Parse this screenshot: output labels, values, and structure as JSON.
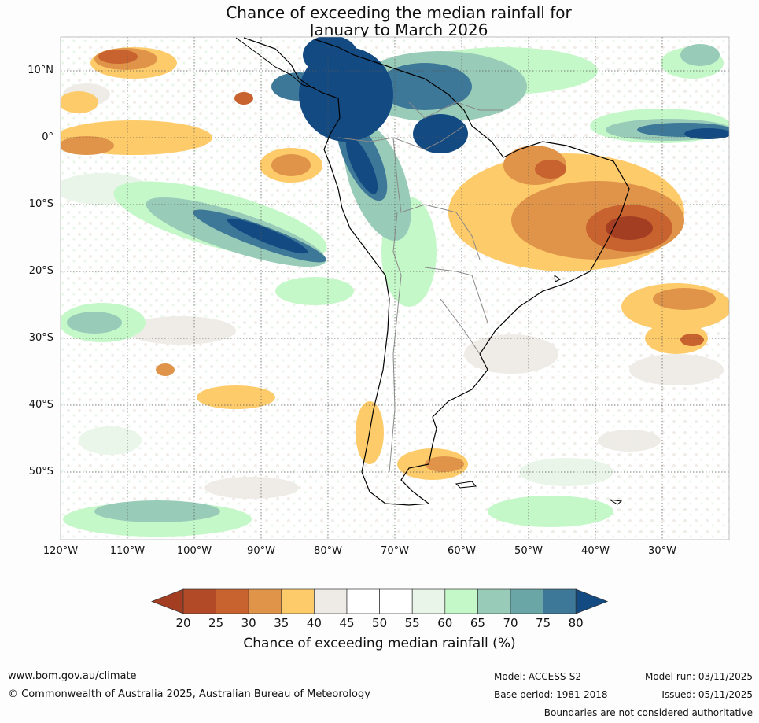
{
  "title": {
    "line1": "Chance of exceeding the median rainfall for",
    "line2": "January to March 2026"
  },
  "map": {
    "lat_labels": [
      "10°N",
      "0°",
      "10°S",
      "20°S",
      "30°S",
      "40°S",
      "50°S"
    ],
    "lon_labels": [
      "120°W",
      "110°W",
      "100°W",
      "90°W",
      "80°W",
      "70°W",
      "60°W",
      "50°W",
      "40°W",
      "30°W"
    ],
    "lat_range": [
      -60,
      15
    ],
    "lon_range": [
      -120,
      -20
    ],
    "grid": "dotted"
  },
  "colorbar": {
    "ticks": [
      "20",
      "25",
      "30",
      "35",
      "40",
      "45",
      "50",
      "55",
      "60",
      "65",
      "70",
      "75",
      "80"
    ],
    "colors": [
      "#a33e22",
      "#b24a28",
      "#c8622e",
      "#e0944a",
      "#fecb6a",
      "#eeebe6",
      "#ffffff",
      "#ffffff",
      "#e8f5e8",
      "#c5f8c8",
      "#98ccb8",
      "#6aa6a6",
      "#3e7898",
      "#134a82"
    ],
    "label": "Chance of exceeding median rainfall (%)"
  },
  "footer": {
    "website": "www.bom.gov.au/climate",
    "copyright": "© Commonwealth of Australia 2025, Australian Bureau of Meteorology",
    "model": "Model: ACCESS-S2",
    "base_period": "Base period: 1981-2018",
    "model_run": "Model run: 03/11/2025",
    "issued": "Issued: 05/11/2025",
    "disclaimer": "Boundaries are not considered authoritative"
  }
}
